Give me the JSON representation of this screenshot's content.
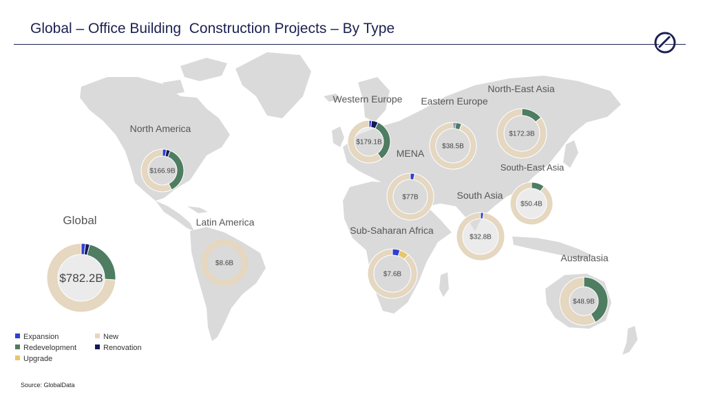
{
  "title": "Global – Office Building  Construction Projects – By Type",
  "source": "Source: GlobalData",
  "colors": {
    "expansion": "#2e3fd1",
    "new": "#e5d7c0",
    "redevelopment": "#4e7d62",
    "renovation": "#141a58",
    "upgrade": "#e8c66b",
    "map": "#dadada",
    "label": "#555555",
    "value": "#444444"
  },
  "legend": [
    {
      "label": "Expansion",
      "key": "expansion"
    },
    {
      "label": "New",
      "key": "new"
    },
    {
      "label": "Redevelopment",
      "key": "redevelopment"
    },
    {
      "label": "Renovation",
      "key": "renovation"
    },
    {
      "label": "Upgrade",
      "key": "upgrade"
    }
  ],
  "chart_data": {
    "type": "pie",
    "series_order": [
      "Expansion",
      "Upgrade",
      "Renovation",
      "Redevelopment",
      "New"
    ],
    "regions": [
      {
        "id": "global",
        "name": "Global",
        "total": "$782.2B",
        "shares": {
          "Expansion": 2,
          "Upgrade": 0,
          "Renovation": 2,
          "Redevelopment": 22,
          "New": 74
        }
      },
      {
        "id": "north-america",
        "name": "North America",
        "total": "$166.9B",
        "shares": {
          "Expansion": 3,
          "Upgrade": 0,
          "Renovation": 3,
          "Redevelopment": 37,
          "New": 57
        }
      },
      {
        "id": "latin-america",
        "name": "Latin America",
        "total": "$8.6B",
        "shares": {
          "Expansion": 0,
          "Upgrade": 0,
          "Renovation": 0,
          "Redevelopment": 0,
          "New": 100
        }
      },
      {
        "id": "western-europe",
        "name": "Western Europe",
        "total": "$179.1B",
        "shares": {
          "Expansion": 2,
          "Upgrade": 0,
          "Renovation": 5,
          "Redevelopment": 33,
          "New": 60
        }
      },
      {
        "id": "eastern-europe",
        "name": "Eastern Europe",
        "total": "$38.5B",
        "shares": {
          "Expansion": 1,
          "Upgrade": 0,
          "Renovation": 1,
          "Redevelopment": 4,
          "New": 94
        }
      },
      {
        "id": "north-east-asia",
        "name": "North-East Asia",
        "total": "$172.3B",
        "shares": {
          "Expansion": 0,
          "Upgrade": 0,
          "Renovation": 0,
          "Redevelopment": 14,
          "New": 86
        }
      },
      {
        "id": "mena",
        "name": "MENA",
        "total": "$77B",
        "shares": {
          "Expansion": 3,
          "Upgrade": 0,
          "Renovation": 0,
          "Redevelopment": 0,
          "New": 97
        }
      },
      {
        "id": "south-east-asia",
        "name": "South-East Asia",
        "total": "$50.4B",
        "shares": {
          "Expansion": 0,
          "Upgrade": 0,
          "Renovation": 0,
          "Redevelopment": 10,
          "New": 90
        }
      },
      {
        "id": "south-asia",
        "name": "South Asia",
        "total": "$32.8B",
        "shares": {
          "Expansion": 2,
          "Upgrade": 0,
          "Renovation": 0,
          "Redevelopment": 0,
          "New": 98
        }
      },
      {
        "id": "sub-saharan-africa",
        "name": "Sub-Saharan Africa",
        "total": "$7.6B",
        "shares": {
          "Expansion": 5,
          "Upgrade": 6,
          "Renovation": 0,
          "Redevelopment": 0,
          "New": 89
        }
      },
      {
        "id": "australasia",
        "name": "Australasia",
        "total": "$48.9B",
        "shares": {
          "Expansion": 0,
          "Upgrade": 0,
          "Renovation": 0,
          "Redevelopment": 42,
          "New": 58
        }
      }
    ]
  }
}
